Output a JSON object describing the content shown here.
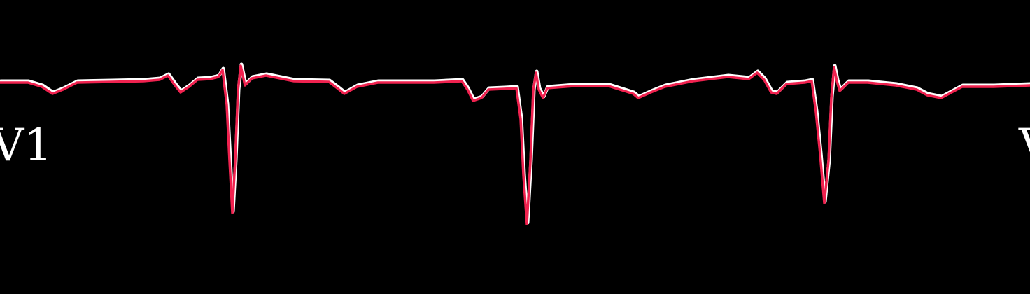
{
  "lead_labels": {
    "left": "V1",
    "right": "V"
  },
  "colors": {
    "background": "#000000",
    "trace": "#f0224f",
    "trace_shadow": "#ffffff",
    "label": "#ffffff"
  }
}
